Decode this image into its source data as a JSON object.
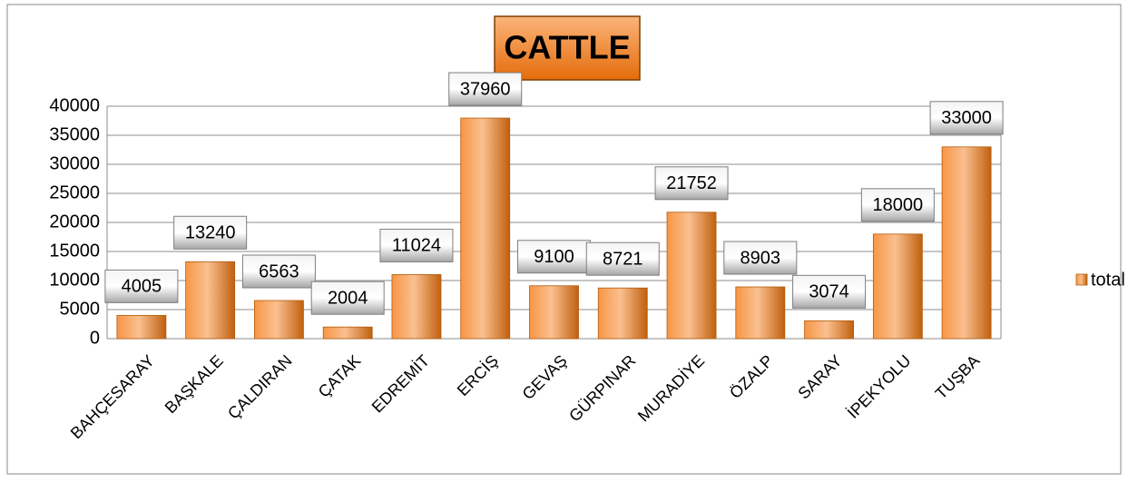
{
  "chart_data": {
    "type": "bar",
    "title": "CATTLE",
    "categories": [
      "BAHÇESARAY",
      "BAŞKALE",
      "ÇALDIRAN",
      "ÇATAK",
      "EDREMİT",
      "ERCİŞ",
      "GEVAŞ",
      "GÜRPINAR",
      "MURADİYE",
      "ÖZALP",
      "SARAY",
      "İPEKYOLU",
      "TUŞBA"
    ],
    "series": [
      {
        "name": "total",
        "color": "#f79646",
        "values": [
          4005,
          13240,
          6563,
          2004,
          11024,
          37960,
          9100,
          8721,
          21752,
          8903,
          3074,
          18000,
          33000
        ]
      }
    ],
    "ylim": [
      0,
      40000
    ],
    "yticks": [
      0,
      5000,
      10000,
      15000,
      20000,
      25000,
      30000,
      35000,
      40000
    ],
    "grid": true,
    "legend": "right"
  }
}
